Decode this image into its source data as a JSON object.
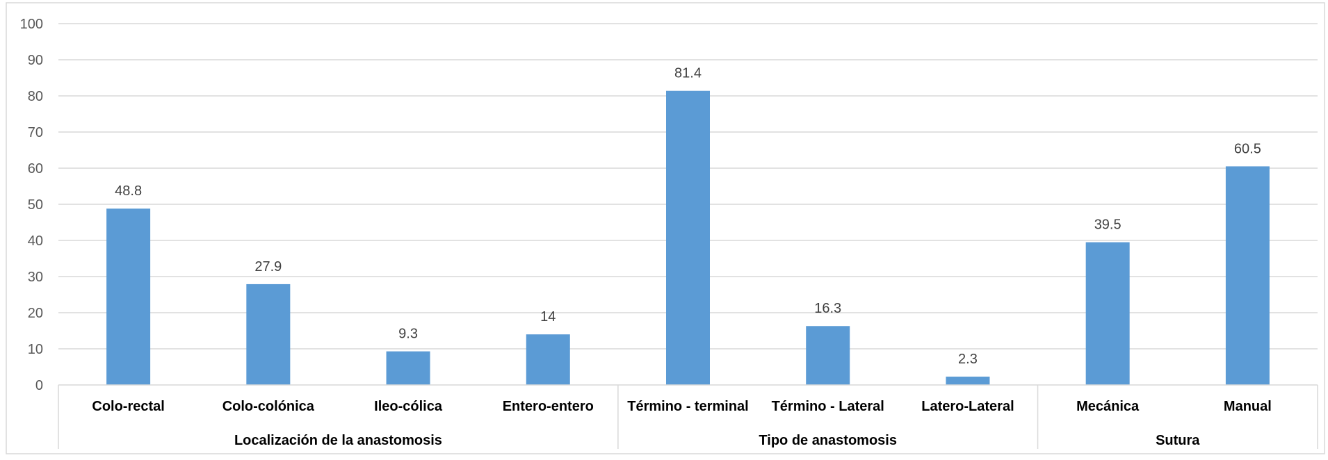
{
  "chart_data": {
    "type": "bar",
    "title": "",
    "xlabel": "",
    "ylabel": "",
    "ylim": [
      0,
      100
    ],
    "yticks": [
      "0",
      "10",
      "20",
      "30",
      "40",
      "50",
      "60",
      "70",
      "80",
      "90",
      "100"
    ],
    "grid": true,
    "legend": "none",
    "bar_color": "#5b9bd5",
    "categories": [
      "Colo-rectal",
      "Colo-colónica",
      "Ileo-cólica",
      "Entero-entero",
      "Término - terminal",
      "Término - Lateral",
      "Latero-Lateral",
      "Mecánica",
      "Manual"
    ],
    "values": [
      48.8,
      27.9,
      9.3,
      14,
      81.4,
      16.3,
      2.3,
      39.5,
      60.5
    ],
    "data_labels": [
      "48.8",
      "27.9",
      "9.3",
      "14",
      "81.4",
      "16.3",
      "2.3",
      "39.5",
      "60.5"
    ],
    "groups": [
      {
        "label": "Localización de la anastomosis",
        "count": 4
      },
      {
        "label": "Tipo de anastomosis",
        "count": 3
      },
      {
        "label": "Sutura",
        "count": 2
      }
    ]
  }
}
